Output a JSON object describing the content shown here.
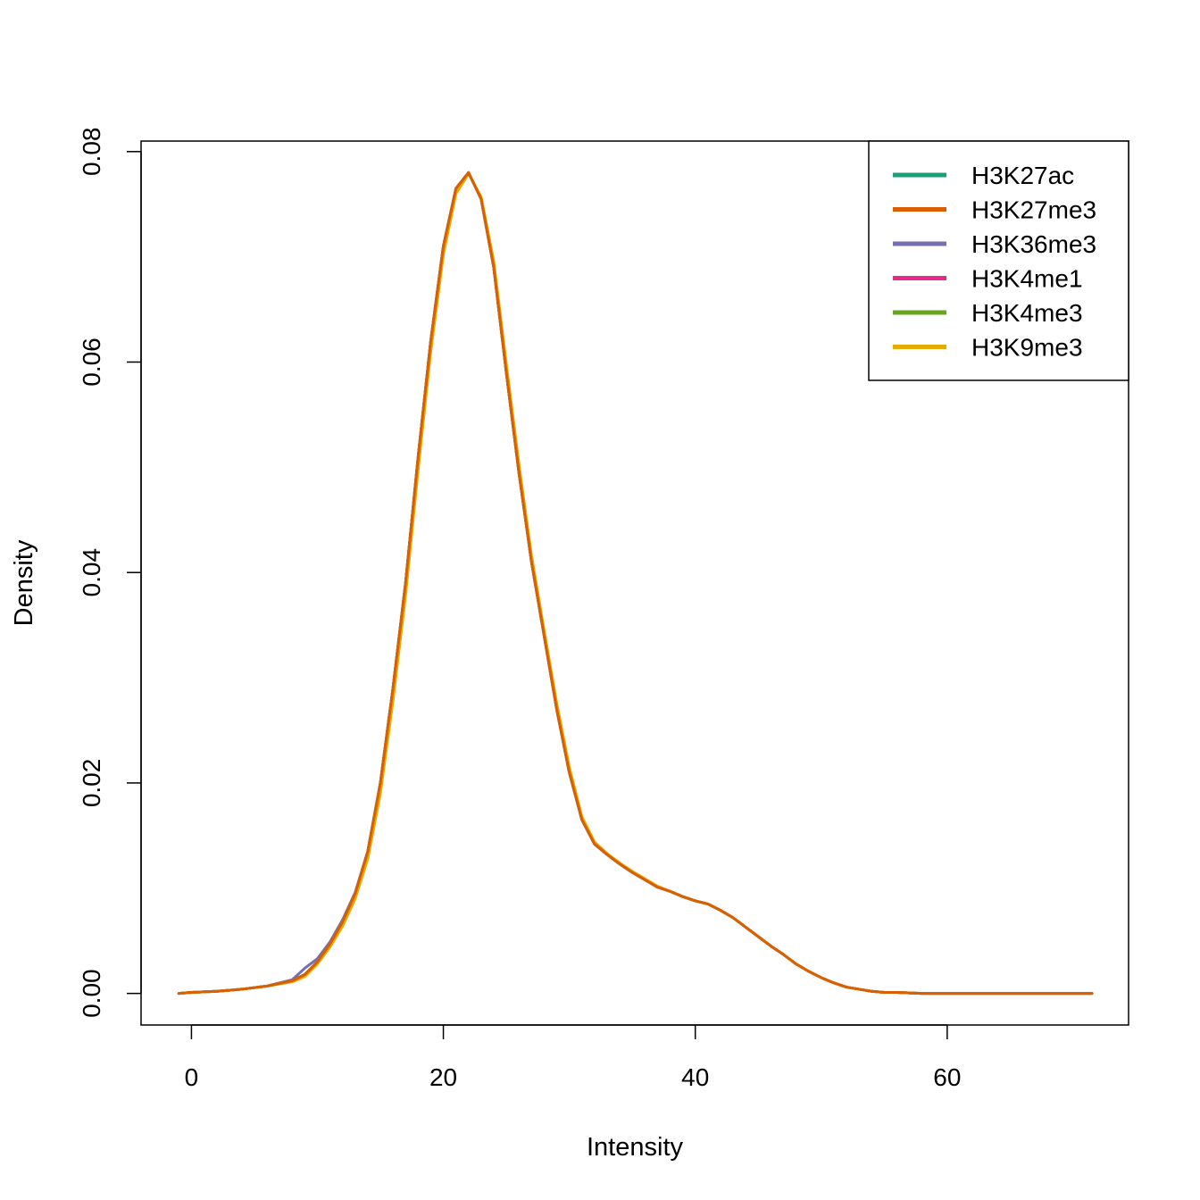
{
  "chart_data": {
    "type": "line",
    "title": "",
    "xlabel": "Intensity",
    "ylabel": "Density",
    "xlim": [
      -4,
      74.4
    ],
    "ylim": [
      -0.003,
      0.081
    ],
    "xticks": [
      {
        "value": 0,
        "label": "0"
      },
      {
        "value": 20,
        "label": "20"
      },
      {
        "value": 40,
        "label": "40"
      },
      {
        "value": 60,
        "label": "60"
      }
    ],
    "yticks": [
      {
        "value": 0,
        "label": "0.00"
      },
      {
        "value": 0.02,
        "label": "0.02"
      },
      {
        "value": 0.04,
        "label": "0.04"
      },
      {
        "value": 0.06,
        "label": "0.06"
      },
      {
        "value": 0.08,
        "label": "0.08"
      }
    ],
    "grid": false,
    "legend_position": "top-right",
    "series": [
      {
        "name": "H3K27ac",
        "color": "#1B9E77",
        "x": [
          -1,
          0,
          2,
          4,
          6,
          8,
          9,
          10,
          11,
          12,
          13,
          14,
          15,
          16,
          17,
          18,
          19,
          20,
          21,
          22,
          23,
          24,
          25,
          26,
          27,
          28,
          29,
          30,
          31,
          32,
          33,
          34,
          35,
          36,
          37,
          38,
          39,
          40,
          41,
          42,
          43,
          44,
          45,
          46,
          47,
          48,
          49,
          50,
          51,
          52,
          53,
          54,
          55,
          56,
          58,
          60,
          65,
          71.5
        ],
        "y": [
          0,
          0.0001,
          0.0002,
          0.0004,
          0.0007,
          0.0012,
          0.0018,
          0.003,
          0.0047,
          0.0068,
          0.0095,
          0.0135,
          0.02,
          0.029,
          0.039,
          0.051,
          0.062,
          0.071,
          0.0765,
          0.078,
          0.0755,
          0.069,
          0.059,
          0.0495,
          0.041,
          0.034,
          0.027,
          0.021,
          0.0165,
          0.0142,
          0.0132,
          0.0123,
          0.0115,
          0.0108,
          0.0101,
          0.0097,
          0.0092,
          0.0088,
          0.0085,
          0.0079,
          0.0072,
          0.0063,
          0.0054,
          0.0045,
          0.0037,
          0.0028,
          0.0021,
          0.0015,
          0.001,
          0.0006,
          0.0004,
          0.0002,
          0.0001,
          0.0001,
          0,
          0,
          0,
          0
        ]
      },
      {
        "name": "H3K27me3",
        "color": "#D95F02",
        "x": [
          -1,
          0,
          2,
          4,
          6,
          8,
          9,
          10,
          11,
          12,
          13,
          14,
          15,
          16,
          17,
          18,
          19,
          20,
          21,
          22,
          23,
          24,
          25,
          26,
          27,
          28,
          29,
          30,
          31,
          32,
          33,
          34,
          35,
          36,
          37,
          38,
          39,
          40,
          41,
          42,
          43,
          44,
          45,
          46,
          47,
          48,
          49,
          50,
          51,
          52,
          53,
          54,
          55,
          56,
          58,
          60,
          65,
          71.5
        ],
        "y": [
          0,
          0.0001,
          0.0002,
          0.0004,
          0.0007,
          0.0012,
          0.0018,
          0.003,
          0.0047,
          0.0068,
          0.0095,
          0.0135,
          0.02,
          0.029,
          0.039,
          0.051,
          0.062,
          0.071,
          0.0765,
          0.078,
          0.0755,
          0.069,
          0.059,
          0.0495,
          0.041,
          0.034,
          0.027,
          0.021,
          0.0165,
          0.0142,
          0.0132,
          0.0123,
          0.0115,
          0.0108,
          0.0101,
          0.0097,
          0.0092,
          0.0088,
          0.0085,
          0.0079,
          0.0072,
          0.0063,
          0.0054,
          0.0045,
          0.0037,
          0.0028,
          0.0021,
          0.0015,
          0.001,
          0.0006,
          0.0004,
          0.0002,
          0.0001,
          0.0001,
          0,
          0,
          0,
          0
        ]
      },
      {
        "name": "H3K36me3",
        "color": "#7570B3",
        "x": [
          -1,
          0,
          2,
          4,
          6,
          8,
          9,
          10,
          11,
          12,
          13,
          14,
          15,
          16,
          17,
          18,
          19,
          20,
          21,
          22,
          23,
          24,
          25,
          26,
          27,
          28,
          29,
          30,
          31,
          32,
          33,
          34,
          35,
          36,
          37,
          38,
          39,
          40,
          41,
          42,
          43,
          44,
          45,
          46,
          47,
          48,
          49,
          50,
          51,
          52,
          53,
          54,
          55,
          56,
          58,
          60,
          65,
          71.5
        ],
        "y": [
          0,
          0.0001,
          0.0002,
          0.0004,
          0.0007,
          0.0013,
          0.0024,
          0.0033,
          0.0049,
          0.007,
          0.0096,
          0.0135,
          0.02,
          0.029,
          0.039,
          0.051,
          0.062,
          0.071,
          0.0765,
          0.078,
          0.0755,
          0.069,
          0.059,
          0.0495,
          0.041,
          0.034,
          0.027,
          0.021,
          0.0165,
          0.0142,
          0.0132,
          0.0123,
          0.0115,
          0.0108,
          0.0101,
          0.0097,
          0.0092,
          0.0088,
          0.0085,
          0.0079,
          0.0072,
          0.0063,
          0.0054,
          0.0045,
          0.0037,
          0.0028,
          0.0021,
          0.0015,
          0.001,
          0.0006,
          0.0004,
          0.0002,
          0.0001,
          0.0001,
          0,
          0,
          0,
          0
        ]
      },
      {
        "name": "H3K4me1",
        "color": "#E7298A",
        "x": [
          -1,
          0,
          2,
          4,
          6,
          8,
          9,
          10,
          11,
          12,
          13,
          14,
          15,
          16,
          17,
          18,
          19,
          20,
          21,
          22,
          23,
          24,
          25,
          26,
          27,
          28,
          29,
          30,
          31,
          32,
          33,
          34,
          35,
          36,
          37,
          38,
          39,
          40,
          41,
          42,
          43,
          44,
          45,
          46,
          47,
          48,
          49,
          50,
          51,
          52,
          53,
          54,
          55,
          56,
          58,
          60,
          65,
          71.5
        ],
        "y": [
          0,
          0.0001,
          0.0002,
          0.0004,
          0.0007,
          0.0012,
          0.0018,
          0.003,
          0.0047,
          0.0068,
          0.0095,
          0.0135,
          0.02,
          0.029,
          0.039,
          0.051,
          0.062,
          0.071,
          0.0765,
          0.078,
          0.0755,
          0.069,
          0.059,
          0.0495,
          0.041,
          0.034,
          0.027,
          0.021,
          0.0165,
          0.0142,
          0.0132,
          0.0123,
          0.0115,
          0.0108,
          0.0101,
          0.0097,
          0.0092,
          0.0088,
          0.0085,
          0.0079,
          0.0072,
          0.0063,
          0.0054,
          0.0045,
          0.0037,
          0.0028,
          0.0021,
          0.0015,
          0.001,
          0.0006,
          0.0004,
          0.0002,
          0.0001,
          0.0001,
          0,
          0,
          0,
          0
        ]
      },
      {
        "name": "H3K4me3",
        "color": "#66A61E",
        "x": [
          -1,
          0,
          2,
          4,
          6,
          8,
          9,
          10,
          11,
          12,
          13,
          14,
          15,
          16,
          17,
          18,
          19,
          20,
          21,
          22,
          23,
          24,
          25,
          26,
          27,
          28,
          29,
          30,
          31,
          32,
          33,
          34,
          35,
          36,
          37,
          38,
          39,
          40,
          41,
          42,
          43,
          44,
          45,
          46,
          47,
          48,
          49,
          50,
          51,
          52,
          53,
          54,
          55,
          56,
          58,
          60,
          65,
          71.5
        ],
        "y": [
          0,
          0.0001,
          0.0002,
          0.0004,
          0.0007,
          0.0012,
          0.0018,
          0.003,
          0.0047,
          0.0068,
          0.0095,
          0.0135,
          0.02,
          0.029,
          0.039,
          0.051,
          0.062,
          0.071,
          0.0765,
          0.078,
          0.0755,
          0.069,
          0.059,
          0.0495,
          0.041,
          0.034,
          0.027,
          0.021,
          0.0165,
          0.0142,
          0.0132,
          0.0123,
          0.0115,
          0.0108,
          0.0101,
          0.0097,
          0.0092,
          0.0088,
          0.0085,
          0.0079,
          0.0072,
          0.0063,
          0.0054,
          0.0045,
          0.0037,
          0.0028,
          0.0021,
          0.0015,
          0.001,
          0.0006,
          0.0004,
          0.0002,
          0.0001,
          0.0001,
          0,
          0,
          0,
          0
        ]
      },
      {
        "name": "H3K9me3",
        "color": "#E6AB02",
        "x": [
          -1,
          0,
          2,
          4,
          6,
          8,
          9,
          10,
          11,
          12,
          13,
          14,
          15,
          16,
          17,
          18,
          19,
          20,
          21,
          22,
          23,
          24,
          25,
          26,
          27,
          28,
          29,
          30,
          31,
          32,
          33,
          34,
          35,
          36,
          37,
          38,
          39,
          40,
          41,
          42,
          43,
          44,
          45,
          46,
          47,
          48,
          49,
          50,
          51,
          52,
          53,
          54,
          55,
          56,
          58,
          60,
          65,
          71.5
        ],
        "y": [
          0,
          0.0001,
          0.0002,
          0.0004,
          0.0007,
          0.0011,
          0.0016,
          0.0028,
          0.0044,
          0.0064,
          0.009,
          0.0128,
          0.019,
          0.0278,
          0.0378,
          0.0498,
          0.061,
          0.0702,
          0.076,
          0.0779,
          0.0757,
          0.0696,
          0.0598,
          0.0503,
          0.0416,
          0.0345,
          0.0276,
          0.0215,
          0.0168,
          0.0144,
          0.0133,
          0.0124,
          0.0116,
          0.0109,
          0.0102,
          0.0097,
          0.0092,
          0.0088,
          0.0085,
          0.0079,
          0.0072,
          0.0063,
          0.0054,
          0.0045,
          0.0037,
          0.0028,
          0.0021,
          0.0015,
          0.001,
          0.0006,
          0.0004,
          0.0002,
          0.0001,
          0.0001,
          0,
          0,
          0,
          0
        ]
      }
    ],
    "draw_order": [
      0,
      2,
      3,
      4,
      5,
      1
    ]
  }
}
